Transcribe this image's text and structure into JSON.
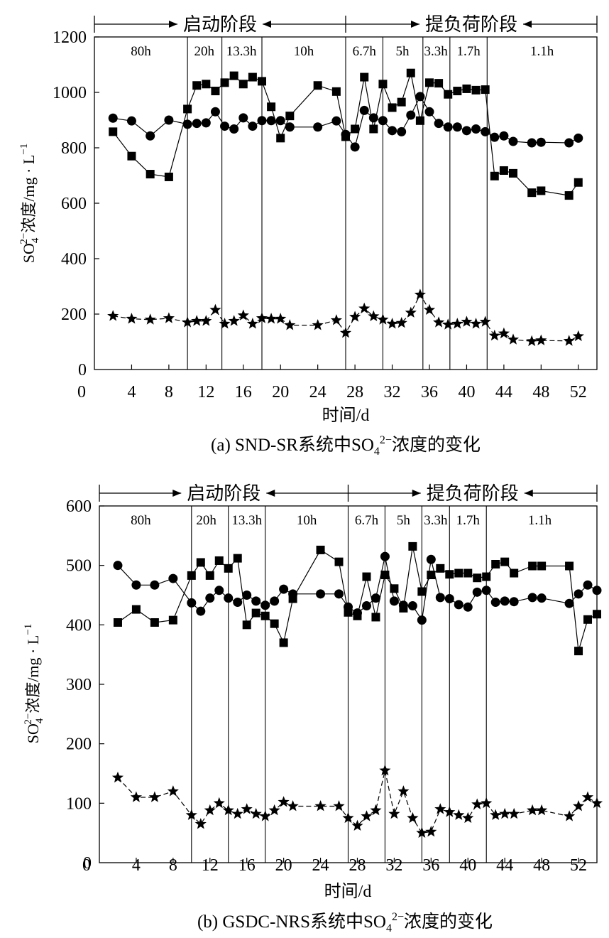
{
  "charts": [
    {
      "caption": {
        "prefix": "(a) SND-SR系统中SO",
        "sub": "4",
        "sup": "2−",
        "suffix": "浓度的变化"
      },
      "ylabel": {
        "prefix": "SO",
        "sub": "4",
        "sup": "2−",
        "suffix": "浓度/mg · L",
        "unit_sup": "−1"
      }
    },
    {
      "caption": {
        "prefix": "(b) GSDC-NRS系统中SO",
        "sub": "4",
        "sup": "2−",
        "suffix": "浓度的变化"
      },
      "ylabel": {
        "prefix": "SO",
        "sub": "4",
        "sup": "2−",
        "suffix": "浓度/mg · L",
        "unit_sup": "−1"
      }
    }
  ],
  "chart_data": [
    {
      "type": "line",
      "xlabel": "时间/d",
      "xlim": [
        0,
        54
      ],
      "ylim": [
        0,
        1200
      ],
      "xticks": [
        0,
        4,
        8,
        12,
        16,
        20,
        24,
        28,
        32,
        36,
        40,
        44,
        48,
        52
      ],
      "yticks": [
        0,
        200,
        400,
        600,
        800,
        1000,
        1200
      ],
      "grid": false,
      "stage_lines": [
        10,
        13.7,
        18,
        27,
        31,
        35.3,
        38.2,
        42.2
      ],
      "stages": [
        {
          "label": "启动阶段",
          "from": 0,
          "to": 27
        },
        {
          "label": "提负荷阶段",
          "from": 27,
          "to": 54
        }
      ],
      "hrt_labels": [
        {
          "text": "80h",
          "x": 5
        },
        {
          "text": "20h",
          "x": 11.8
        },
        {
          "text": "13.3h",
          "x": 15.8
        },
        {
          "text": "10h",
          "x": 22.5
        },
        {
          "text": "6.7h",
          "x": 29
        },
        {
          "text": "5h",
          "x": 33.1
        },
        {
          "text": "3.3h",
          "x": 36.7
        },
        {
          "text": "1.7h",
          "x": 40.2
        },
        {
          "text": "1.1h",
          "x": 48.1
        }
      ],
      "series": [
        {
          "marker": "circle",
          "x": [
            2,
            4,
            6,
            8,
            10,
            11,
            12,
            13,
            14,
            15,
            16,
            17,
            18,
            19,
            20,
            21,
            24,
            26,
            27,
            28,
            29,
            30,
            31,
            32,
            33,
            34,
            35,
            36,
            37,
            38,
            39,
            40,
            41,
            42,
            43,
            44,
            45,
            47,
            48,
            51,
            52
          ],
          "y": [
            907,
            897,
            843,
            900,
            885,
            888,
            890,
            930,
            878,
            868,
            908,
            878,
            898,
            898,
            898,
            875,
            875,
            897,
            848,
            803,
            935,
            908,
            898,
            862,
            858,
            918,
            985,
            930,
            888,
            875,
            875,
            862,
            868,
            858,
            838,
            843,
            823,
            818,
            820,
            818,
            835
          ]
        },
        {
          "marker": "square",
          "x": [
            2,
            4,
            6,
            8,
            10,
            11,
            12,
            13,
            14,
            15,
            16,
            17,
            18,
            19,
            20,
            21,
            24,
            26,
            27,
            28,
            29,
            30,
            31,
            32,
            33,
            34,
            35,
            36,
            37,
            38,
            39,
            40,
            41,
            42,
            43,
            44,
            45,
            47,
            48,
            51,
            52
          ],
          "y": [
            858,
            770,
            705,
            695,
            940,
            1025,
            1030,
            1005,
            1035,
            1060,
            1030,
            1055,
            1040,
            948,
            835,
            915,
            1025,
            1003,
            840,
            868,
            1055,
            868,
            1030,
            945,
            965,
            1070,
            898,
            1035,
            1033,
            993,
            1005,
            1013,
            1008,
            1010,
            698,
            718,
            708,
            638,
            645,
            628,
            675
          ]
        },
        {
          "marker": "star",
          "x": [
            2,
            4,
            6,
            8,
            10,
            11,
            12,
            13,
            14,
            15,
            16,
            17,
            18,
            19,
            20,
            21,
            24,
            26,
            27,
            28,
            29,
            30,
            31,
            32,
            33,
            34,
            35,
            36,
            37,
            38,
            39,
            40,
            41,
            42,
            43,
            44,
            45,
            47,
            48,
            51,
            52
          ],
          "y": [
            193,
            183,
            180,
            185,
            170,
            175,
            175,
            215,
            165,
            175,
            195,
            165,
            185,
            183,
            183,
            160,
            160,
            178,
            132,
            190,
            220,
            192,
            180,
            165,
            168,
            205,
            270,
            215,
            170,
            162,
            165,
            172,
            165,
            172,
            122,
            130,
            108,
            102,
            105,
            103,
            120
          ]
        }
      ]
    },
    {
      "type": "line",
      "xlabel": "时间/d",
      "xlim": [
        0,
        54
      ],
      "ylim": [
        0,
        600
      ],
      "xticks": [
        0,
        4,
        8,
        12,
        16,
        20,
        24,
        28,
        32,
        36,
        40,
        44,
        48,
        52
      ],
      "yticks": [
        0,
        100,
        200,
        300,
        400,
        500,
        600
      ],
      "grid": false,
      "stage_lines": [
        10,
        14,
        18,
        27,
        31,
        35,
        38,
        42
      ],
      "stages": [
        {
          "label": "启动阶段",
          "from": 0,
          "to": 27
        },
        {
          "label": "提负荷阶段",
          "from": 27,
          "to": 54
        }
      ],
      "hrt_labels": [
        {
          "text": "80h",
          "x": 4.5
        },
        {
          "text": "20h",
          "x": 11.6
        },
        {
          "text": "13.3h",
          "x": 16
        },
        {
          "text": "10h",
          "x": 22.5
        },
        {
          "text": "6.7h",
          "x": 29
        },
        {
          "text": "5h",
          "x": 33
        },
        {
          "text": "3.3h",
          "x": 36.5
        },
        {
          "text": "1.7h",
          "x": 40
        },
        {
          "text": "1.1h",
          "x": 47.8
        }
      ],
      "series": [
        {
          "marker": "circle",
          "x": [
            2,
            4,
            6,
            8,
            10,
            11,
            12,
            13,
            14,
            15,
            16,
            17,
            18,
            19,
            20,
            21,
            24,
            26,
            27,
            28,
            29,
            30,
            31,
            32,
            33,
            34,
            35,
            36,
            37,
            38,
            39,
            40,
            41,
            42,
            43,
            44,
            45,
            47,
            48,
            51,
            52,
            53,
            54
          ],
          "y": [
            500,
            467,
            467,
            478,
            437,
            423,
            445,
            458,
            445,
            438,
            450,
            440,
            433,
            440,
            460,
            452,
            452,
            452,
            430,
            420,
            432,
            445,
            515,
            440,
            433,
            432,
            408,
            510,
            446,
            444,
            434,
            430,
            455,
            458,
            438,
            440,
            439,
            446,
            445,
            436,
            452,
            467,
            458
          ]
        },
        {
          "marker": "square",
          "x": [
            2,
            4,
            6,
            8,
            10,
            11,
            12,
            13,
            14,
            15,
            16,
            17,
            18,
            19,
            20,
            21,
            24,
            26,
            27,
            28,
            29,
            30,
            31,
            32,
            33,
            34,
            35,
            36,
            37,
            38,
            39,
            40,
            41,
            42,
            43,
            44,
            45,
            47,
            48,
            51,
            52,
            53,
            54
          ],
          "y": [
            404,
            426,
            404,
            408,
            483,
            505,
            483,
            508,
            495,
            512,
            400,
            420,
            415,
            402,
            370,
            444,
            526,
            506,
            421,
            415,
            481,
            413,
            484,
            461,
            428,
            532,
            456,
            484,
            495,
            485,
            487,
            487,
            479,
            481,
            502,
            506,
            487,
            499,
            499,
            499,
            356,
            409,
            418
          ]
        },
        {
          "marker": "star",
          "x": [
            2,
            4,
            6,
            8,
            10,
            11,
            12,
            13,
            14,
            15,
            16,
            17,
            18,
            19,
            20,
            21,
            24,
            26,
            27,
            28,
            29,
            30,
            31,
            32,
            33,
            34,
            35,
            36,
            37,
            38,
            39,
            40,
            41,
            42,
            43,
            44,
            45,
            47,
            48,
            51,
            52,
            53,
            54
          ],
          "y": [
            143,
            110,
            110,
            120,
            80,
            65,
            88,
            100,
            88,
            82,
            90,
            82,
            78,
            88,
            102,
            95,
            95,
            95,
            75,
            62,
            78,
            88,
            155,
            82,
            120,
            75,
            50,
            52,
            90,
            85,
            80,
            75,
            98,
            100,
            80,
            82,
            82,
            88,
            88,
            78,
            95,
            110,
            100
          ]
        }
      ]
    }
  ]
}
